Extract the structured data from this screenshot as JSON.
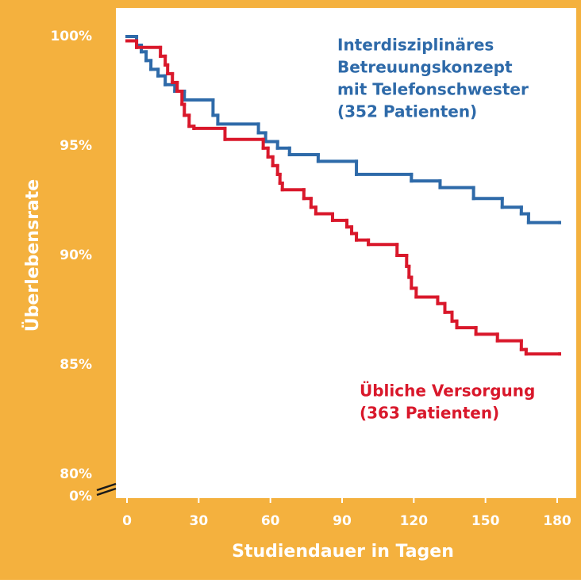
{
  "chart_data": {
    "type": "step",
    "x_label": "Studiendauer in Tagen",
    "y_label": "Überlebensrate",
    "xlim": [
      0,
      180
    ],
    "xticks": [
      0,
      30,
      60,
      90,
      120,
      150,
      180
    ],
    "ylim": [
      80,
      100
    ],
    "yticks": [
      {
        "value": 80,
        "label": "80%"
      },
      {
        "value": 85,
        "label": "85%"
      },
      {
        "value": 90,
        "label": "90%"
      },
      {
        "value": 95,
        "label": "95%"
      },
      {
        "value": 100,
        "label": "100%"
      }
    ],
    "y_break_label": "0%",
    "step": "post",
    "series": [
      {
        "color": "#2e6aa9",
        "label_lines": [
          "Interdisziplinäres",
          "Betreuungskonzept",
          "mit Telefonschwester",
          "(352 Patienten)"
        ],
        "x": [
          0,
          4,
          6,
          8,
          10,
          13,
          16,
          20,
          24,
          36,
          38,
          55,
          58,
          63,
          68,
          80,
          96,
          119,
          131,
          145,
          157,
          165,
          168,
          181
        ],
        "values": [
          100,
          99.6,
          99.3,
          98.9,
          98.5,
          98.2,
          97.8,
          97.5,
          97.1,
          96.4,
          96.0,
          95.6,
          95.2,
          94.9,
          94.6,
          94.3,
          93.7,
          93.4,
          93.1,
          92.6,
          92.2,
          91.9,
          91.5,
          91.5
        ]
      },
      {
        "color": "#d9182b",
        "label_lines": [
          "Übliche Versorgung",
          "(363 Patienten)"
        ],
        "x": [
          0,
          4,
          14,
          16,
          17,
          19,
          21,
          23,
          24,
          26,
          28,
          41,
          57,
          59,
          61,
          63,
          64,
          65,
          74,
          77,
          79,
          86,
          92,
          94,
          96,
          101,
          113,
          117,
          118,
          119,
          121,
          130,
          133,
          136,
          138,
          146,
          155,
          165,
          167,
          181
        ],
        "values": [
          99.8,
          99.5,
          99.1,
          98.7,
          98.3,
          97.9,
          97.5,
          96.9,
          96.4,
          95.9,
          95.8,
          95.3,
          94.9,
          94.5,
          94.1,
          93.7,
          93.3,
          93.0,
          92.6,
          92.2,
          91.9,
          91.6,
          91.3,
          91.0,
          90.7,
          90.5,
          90.0,
          89.5,
          89.0,
          88.5,
          88.1,
          87.8,
          87.4,
          87.0,
          86.7,
          86.4,
          86.1,
          85.7,
          85.5,
          85.5
        ]
      }
    ]
  }
}
